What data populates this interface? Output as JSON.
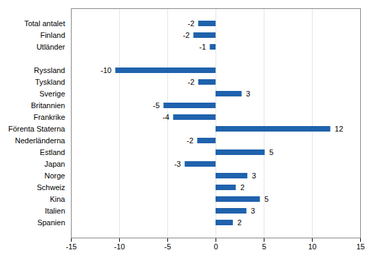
{
  "chart_data": {
    "type": "bar",
    "orientation": "horizontal",
    "categories": [
      "Total antalet",
      "Finland",
      "Utländer",
      null,
      "Ryssland",
      "Tyskland",
      "Sverige",
      "Britannien",
      "Frankrike",
      "Förenta Staterna",
      "Nederländerna",
      "Estland",
      "Japan",
      "Norge",
      "Schweiz",
      "Kina",
      "Italien",
      "Spanien"
    ],
    "values": [
      -1.8,
      -2.3,
      -0.6,
      null,
      -10.4,
      -1.8,
      2.7,
      -5.4,
      -4.4,
      11.9,
      -1.9,
      5.1,
      -3.2,
      3.3,
      2.1,
      4.6,
      3.2,
      1.8
    ],
    "value_labels": [
      "-2",
      "-2",
      "-1",
      null,
      "-10",
      "-2",
      "3",
      "-5",
      "-4",
      "12",
      "-2",
      "5",
      "-3",
      "3",
      "2",
      "5",
      "3",
      "2"
    ],
    "color": "#1f62ad",
    "xlim": [
      -15,
      15
    ],
    "xticks": [
      -15,
      -10,
      -5,
      0,
      5,
      10,
      15
    ],
    "grid": true,
    "data_labels": true
  }
}
